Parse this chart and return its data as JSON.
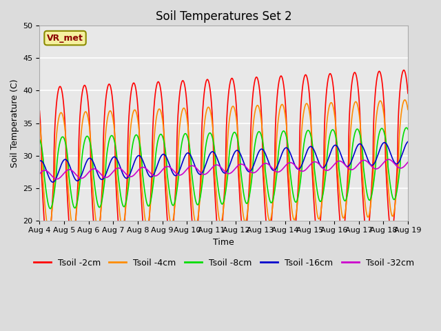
{
  "title": "Soil Temperatures Set 2",
  "xlabel": "Time",
  "ylabel": "Soil Temperature (C)",
  "ylim": [
    20,
    50
  ],
  "background_color": "#dcdcdc",
  "plot_bg_color": "#e8e8e8",
  "series_colors": {
    "2cm": "#ff0000",
    "4cm": "#ff8c00",
    "8cm": "#00dd00",
    "16cm": "#0000cc",
    "32cm": "#cc00cc"
  },
  "series_labels": [
    "Tsoil -2cm",
    "Tsoil -4cm",
    "Tsoil -8cm",
    "Tsoil -16cm",
    "Tsoil -32cm"
  ],
  "tick_dates": [
    "Aug 4",
    "Aug 5",
    "Aug 6",
    "Aug 7",
    "Aug 8",
    "Aug 9",
    "Aug 10",
    "Aug 11",
    "Aug 12",
    "Aug 13",
    "Aug 14",
    "Aug 15",
    "Aug 16",
    "Aug 17",
    "Aug 18",
    "Aug 19"
  ],
  "annotation_text": "VR_met",
  "title_fontsize": 12,
  "axis_fontsize": 9,
  "tick_fontsize": 8,
  "legend_fontsize": 9,
  "linewidth": 1.2
}
